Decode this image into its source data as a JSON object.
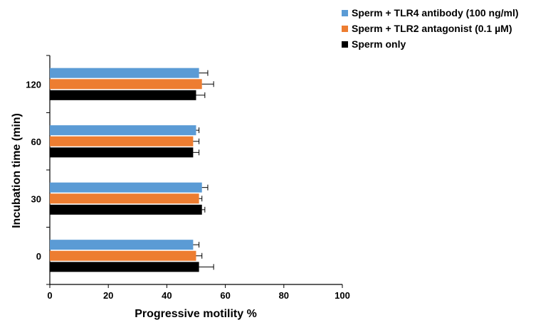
{
  "chart_data": {
    "type": "bar",
    "orientation": "horizontal",
    "title": "",
    "xlabel": "Progressive motility %",
    "ylabel": "Incubation time (min)",
    "xlim": [
      0,
      100
    ],
    "x_ticks": [
      "0",
      "20",
      "40",
      "60",
      "80",
      "100"
    ],
    "categories": [
      "0",
      "30",
      "60",
      "120"
    ],
    "series": [
      {
        "name": "Sperm + TLR4 antibody (100 ng/ml)",
        "color": "#5b9bd5",
        "values": [
          49,
          52,
          50,
          51
        ],
        "errors": [
          2,
          2,
          1,
          3
        ]
      },
      {
        "name": "Sperm + TLR2 antagonist (0.1 µM)",
        "color": "#ed7d31",
        "values": [
          50,
          51,
          49,
          52
        ],
        "errors": [
          2,
          1,
          2,
          4
        ]
      },
      {
        "name": "Sperm only",
        "color": "#000000",
        "values": [
          51,
          52,
          49,
          50
        ],
        "errors": [
          5,
          1,
          2,
          3
        ]
      }
    ],
    "grid": false,
    "legend_position": "top-right",
    "error_bars": true
  }
}
